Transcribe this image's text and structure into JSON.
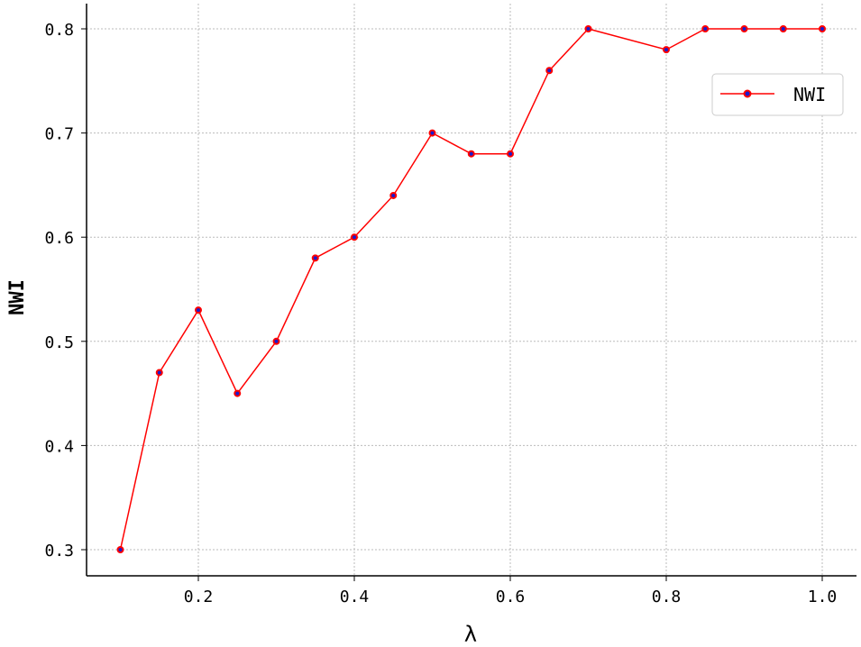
{
  "chart_data": {
    "type": "line",
    "title": "",
    "xlabel": "λ",
    "ylabel": "NWI",
    "xlim": [
      0.05,
      1.05
    ],
    "ylim": [
      0.28,
      0.825
    ],
    "xticks": [
      "0.2",
      "0.4",
      "0.6",
      "0.8",
      "1.0"
    ],
    "yticks": [
      "0.3",
      "0.4",
      "0.5",
      "0.6",
      "0.7",
      "0.8"
    ],
    "grid": true,
    "legend": "top-right",
    "series": [
      {
        "name": "NWI",
        "color": "#ff0000",
        "marker_center_color": "#1a1acc",
        "x": [
          0.1,
          0.15,
          0.2,
          0.25,
          0.3,
          0.35,
          0.4,
          0.45,
          0.5,
          0.55,
          0.6,
          0.65,
          0.7,
          0.8,
          0.85,
          0.9,
          0.95,
          1.0
        ],
        "y": [
          0.3,
          0.47,
          0.53,
          0.45,
          0.5,
          0.58,
          0.6,
          0.64,
          0.7,
          0.68,
          0.68,
          0.76,
          0.8,
          0.78,
          0.8,
          0.8,
          0.8,
          0.8
        ]
      }
    ]
  }
}
